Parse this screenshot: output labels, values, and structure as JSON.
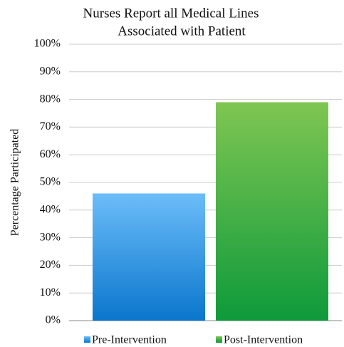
{
  "chart_data": {
    "type": "bar",
    "title": [
      "Nurses Report all Medical Lines",
      "Associated with Patient"
    ],
    "y_label": "Percentage Participated",
    "series": [
      {
        "name": "Pre-Intervention",
        "gradient": [
          "#6cbdf9",
          "#0a76cc"
        ],
        "values": [
          46
        ]
      },
      {
        "name": "Post-Intervention",
        "gradient": [
          "#7fc652",
          "#0e9a3b"
        ],
        "values": [
          79
        ]
      }
    ],
    "ylim": [
      0,
      100
    ],
    "yticks": [
      {
        "value": 0,
        "label": "0%"
      },
      {
        "value": 10,
        "label": "10%"
      },
      {
        "value": 20,
        "label": "20%"
      },
      {
        "value": 30,
        "label": "30%"
      },
      {
        "value": 40,
        "label": "40%"
      },
      {
        "value": 50,
        "label": "50%"
      },
      {
        "value": 60,
        "label": "60%"
      },
      {
        "value": 70,
        "label": "70%"
      },
      {
        "value": 80,
        "label": "80%"
      },
      {
        "value": 90,
        "label": "90%"
      },
      {
        "value": 100,
        "label": "100%"
      }
    ],
    "grid": true
  }
}
